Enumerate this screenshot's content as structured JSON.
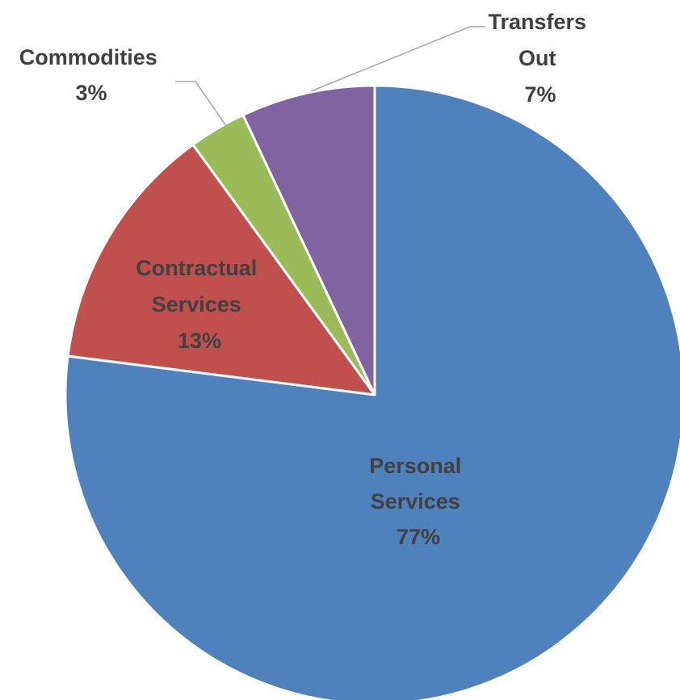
{
  "chart_data": {
    "type": "pie",
    "title": "",
    "slices": [
      {
        "label": "Personal Services",
        "value": 77,
        "value_label": "77%",
        "color": "#4F81BD"
      },
      {
        "label": "Contractual Services",
        "value": 13,
        "value_label": "13%",
        "color": "#C0504D"
      },
      {
        "label": "Commodities",
        "value": 3,
        "value_label": "3%",
        "color": "#9BBB59"
      },
      {
        "label": "Transfers Out",
        "value": 7,
        "value_label": "7%",
        "color": "#8064A2"
      }
    ],
    "start_angle": "12 o'clock",
    "direction": "clockwise",
    "legend": "none",
    "data_labels": "category name and percentage"
  },
  "labels": {
    "personal_line1": "Personal",
    "personal_line2": "Services",
    "personal_pct": "77%",
    "contractual_line1": "Contractual",
    "contractual_line2": "Services",
    "contractual_pct": "13%",
    "commodities_line1": "Commodities",
    "commodities_pct": "3%",
    "transfers_line1": "Transfers",
    "transfers_line2": "Out",
    "transfers_pct": "7%"
  }
}
